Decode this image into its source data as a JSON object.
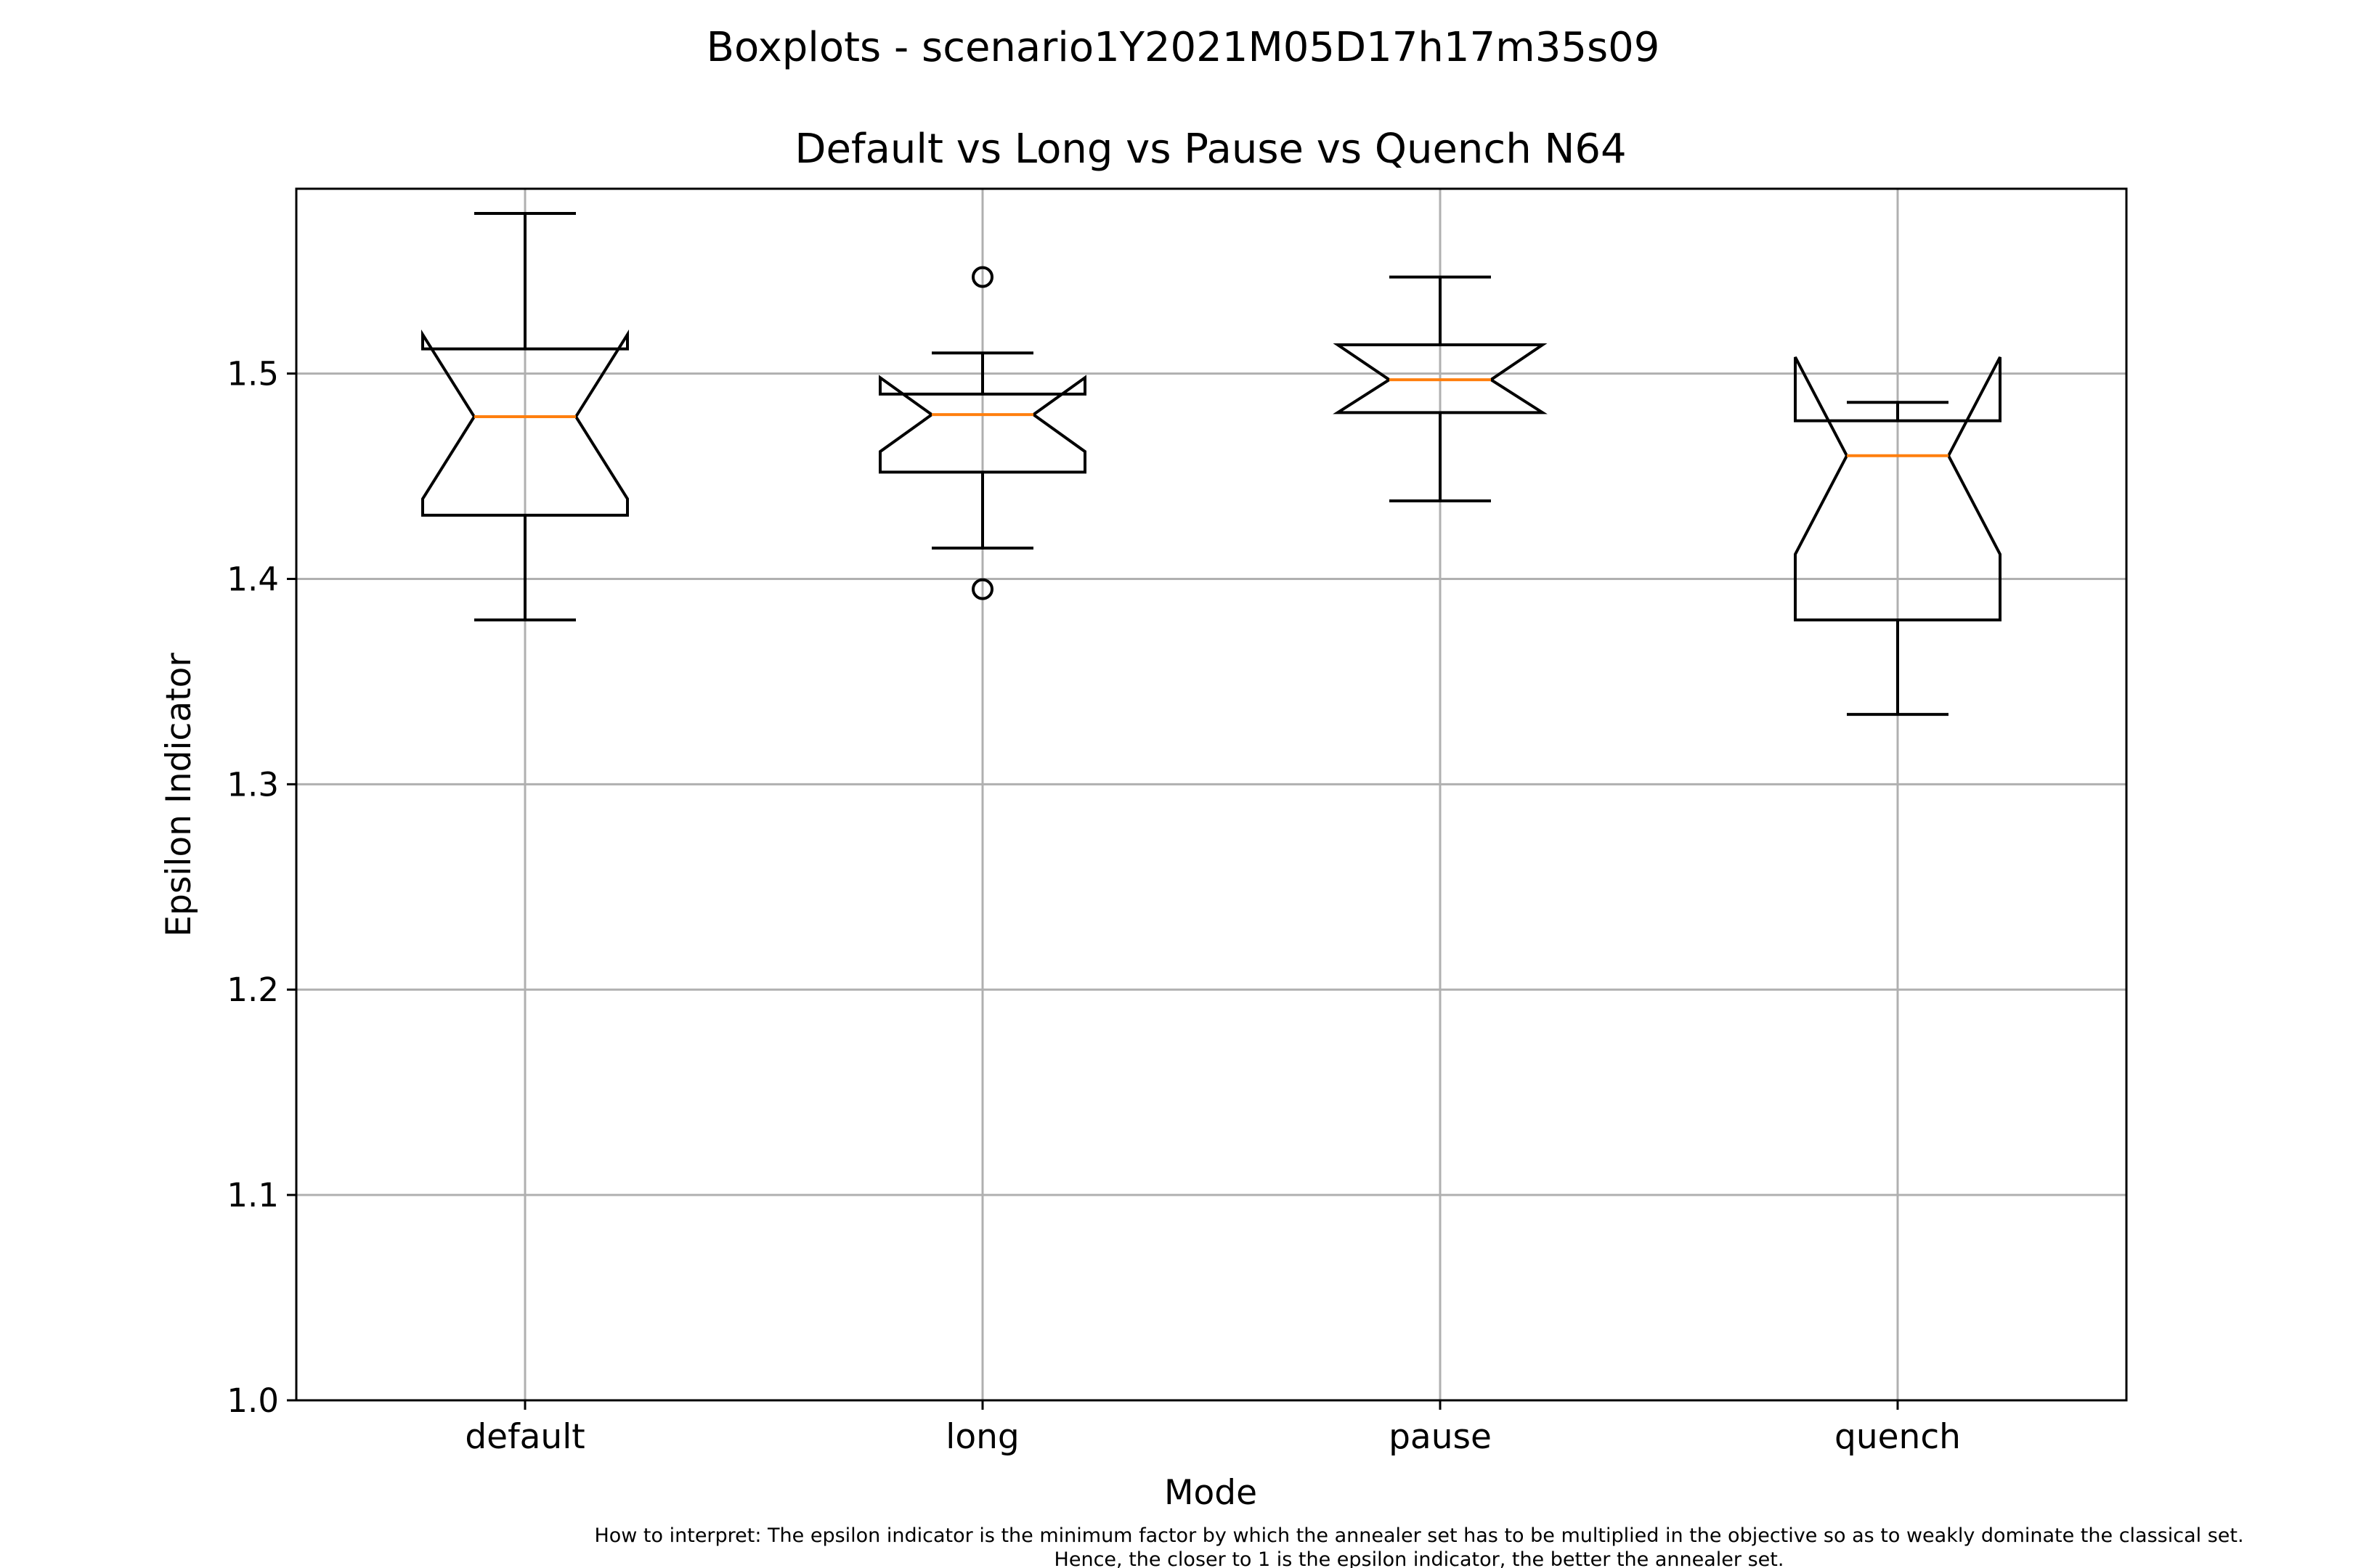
{
  "figure": {
    "suptitle": "Boxplots - scenario1Y2021M05D17h17m35s09",
    "footnote_line1": "How to interpret: The epsilon indicator is the minimum factor by which the annealer set has to be multiplied in the objective so as to weakly dominate the classical set.",
    "footnote_line2": "Hence, the closer to 1 is the epsilon indicator, the better the annealer set."
  },
  "colors": {
    "box": "#000000",
    "median": "#ff7f0e",
    "grid": "#b0b0b0"
  },
  "chart_data": {
    "type": "boxplot",
    "title": "Default vs Long vs Pause vs Quench N64",
    "xlabel": "Mode",
    "ylabel": "Epsilon Indicator",
    "categories": [
      "default",
      "long",
      "pause",
      "quench"
    ],
    "ylim": [
      1.0,
      1.59
    ],
    "yticks": [
      1.0,
      1.1,
      1.2,
      1.3,
      1.4,
      1.5
    ],
    "ytick_labels": [
      "1.0",
      "1.1",
      "1.2",
      "1.3",
      "1.4",
      "1.5"
    ],
    "grid": true,
    "notched": true,
    "boxes": [
      {
        "category": "default",
        "whisker_low": 1.38,
        "q1": 1.431,
        "median": 1.479,
        "q3": 1.512,
        "whisker_high": 1.578,
        "notch_low": 1.439,
        "notch_high": 1.519,
        "outliers": []
      },
      {
        "category": "long",
        "whisker_low": 1.415,
        "q1": 1.452,
        "median": 1.48,
        "q3": 1.49,
        "whisker_high": 1.51,
        "notch_low": 1.462,
        "notch_high": 1.498,
        "outliers": [
          1.395,
          1.547
        ]
      },
      {
        "category": "pause",
        "whisker_low": 1.438,
        "q1": 1.481,
        "median": 1.497,
        "q3": 1.514,
        "whisker_high": 1.547,
        "notch_low": 1.481,
        "notch_high": 1.514,
        "outliers": []
      },
      {
        "category": "quench",
        "whisker_low": 1.334,
        "q1": 1.38,
        "median": 1.46,
        "q3": 1.477,
        "whisker_high": 1.486,
        "notch_low": 1.412,
        "notch_high": 1.508,
        "outliers": []
      }
    ]
  }
}
